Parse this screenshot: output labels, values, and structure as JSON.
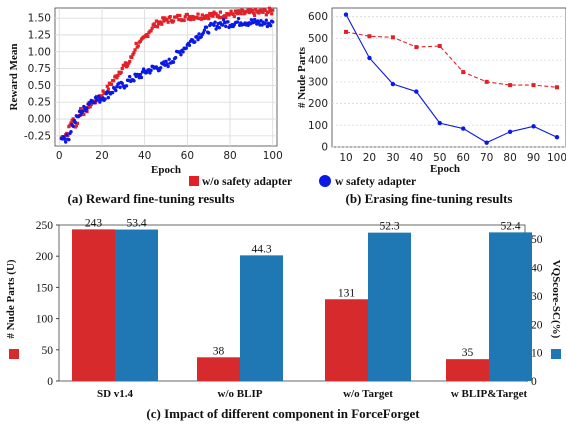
{
  "colors": {
    "red": "#e32027",
    "blue": "#0a18e8",
    "bar_red": "#d62a2c",
    "bar_blue": "#1f77b4",
    "grid": "#d9d9d9"
  },
  "chart_data": [
    {
      "type": "scatter",
      "caption": "(a) Reward fine-tuning results",
      "xlabel": "Epoch",
      "ylabel": "Reward Mean",
      "xlim": [
        -2,
        102
      ],
      "ylim": [
        -0.4,
        1.65
      ],
      "xticks": [
        0,
        20,
        40,
        60,
        80,
        100
      ],
      "yticks": [
        -0.25,
        0.0,
        0.25,
        0.5,
        0.75,
        1.0,
        1.25,
        1.5
      ],
      "grid": true,
      "legend": [
        {
          "label": "w/o safety adapter",
          "marker": "square",
          "color": "#e32027"
        },
        {
          "label": "w safety adapter",
          "marker": "circle",
          "color": "#0a18e8"
        }
      ],
      "series": [
        {
          "name": "w/o safety adapter",
          "anchors": [
            [
              1,
              -0.28
            ],
            [
              4,
              -0.2
            ],
            [
              6,
              0.0
            ],
            [
              8,
              -0.1
            ],
            [
              10,
              0.15
            ],
            [
              12,
              0.1
            ],
            [
              14,
              0.2
            ],
            [
              16,
              0.25
            ],
            [
              18,
              0.3
            ],
            [
              20,
              0.38
            ],
            [
              22,
              0.42
            ],
            [
              24,
              0.52
            ],
            [
              26,
              0.6
            ],
            [
              28,
              0.7
            ],
            [
              30,
              0.78
            ],
            [
              32,
              0.8
            ],
            [
              34,
              0.92
            ],
            [
              36,
              1.1
            ],
            [
              38,
              1.12
            ],
            [
              40,
              1.2
            ],
            [
              42,
              1.3
            ],
            [
              44,
              1.38
            ],
            [
              46,
              1.42
            ],
            [
              48,
              1.45
            ],
            [
              50,
              1.47
            ],
            [
              55,
              1.5
            ],
            [
              60,
              1.52
            ],
            [
              65,
              1.53
            ],
            [
              70,
              1.54
            ],
            [
              80,
              1.56
            ],
            [
              90,
              1.58
            ],
            [
              100,
              1.6
            ]
          ],
          "jitter": 0.05
        },
        {
          "name": "w safety adapter",
          "anchors": [
            [
              1,
              -0.25
            ],
            [
              4,
              -0.3
            ],
            [
              6,
              -0.1
            ],
            [
              8,
              0.0
            ],
            [
              10,
              0.1
            ],
            [
              12,
              0.15
            ],
            [
              14,
              0.25
            ],
            [
              16,
              0.3
            ],
            [
              18,
              0.28
            ],
            [
              20,
              0.32
            ],
            [
              22,
              0.35
            ],
            [
              24,
              0.4
            ],
            [
              26,
              0.45
            ],
            [
              28,
              0.48
            ],
            [
              30,
              0.5
            ],
            [
              32,
              0.55
            ],
            [
              34,
              0.6
            ],
            [
              36,
              0.62
            ],
            [
              38,
              0.65
            ],
            [
              40,
              0.7
            ],
            [
              44,
              0.75
            ],
            [
              48,
              0.78
            ],
            [
              52,
              0.85
            ],
            [
              56,
              0.98
            ],
            [
              60,
              1.1
            ],
            [
              64,
              1.22
            ],
            [
              68,
              1.3
            ],
            [
              72,
              1.38
            ],
            [
              76,
              1.42
            ],
            [
              80,
              1.42
            ],
            [
              86,
              1.45
            ],
            [
              92,
              1.43
            ],
            [
              100,
              1.42
            ]
          ],
          "jitter": 0.06
        }
      ]
    },
    {
      "type": "line",
      "caption": "(b)  Erasing fine-tuning results",
      "xlabel": "Epoch",
      "ylabel": "# Nude Parts",
      "x": [
        10,
        20,
        30,
        40,
        50,
        60,
        70,
        80,
        90,
        100
      ],
      "ylim": [
        0,
        640
      ],
      "yticks": [
        0,
        100,
        200,
        300,
        400,
        500,
        600
      ],
      "grid": true,
      "series": [
        {
          "style": "dashed",
          "color": "#e32027",
          "values": [
            530,
            510,
            505,
            460,
            465,
            345,
            300,
            285,
            285,
            275
          ]
        },
        {
          "style": "solid",
          "color": "#0a18e8",
          "values": [
            610,
            410,
            290,
            255,
            110,
            85,
            20,
            70,
            95,
            45
          ]
        }
      ]
    },
    {
      "type": "bar",
      "caption": "(c) Impact of different component  in ForceForget",
      "categories": [
        "SD v1.4",
        "w/o BLIP",
        "w/o Target",
        "w BLIP&Target"
      ],
      "ylabel_left": "# Nude Parts (U)",
      "ylabel_right": "VQScore-SC(%)",
      "ylim_left": [
        0,
        250
      ],
      "ylim_right": [
        0,
        55
      ],
      "yticks_left": [
        0,
        50,
        100,
        150,
        200,
        250
      ],
      "yticks_right": [
        0,
        10,
        20,
        30,
        40,
        50
      ],
      "series": [
        {
          "axis": "left",
          "color": "#d62a2c",
          "values": [
            243,
            38,
            131,
            35
          ],
          "labels": [
            "243",
            "38",
            "131",
            "35"
          ]
        },
        {
          "axis": "right",
          "color": "#1f77b4",
          "values": [
            53.4,
            44.3,
            52.3,
            52.4
          ],
          "labels": [
            "53.4",
            "44.3",
            "52.3",
            "52.4"
          ]
        }
      ]
    }
  ]
}
